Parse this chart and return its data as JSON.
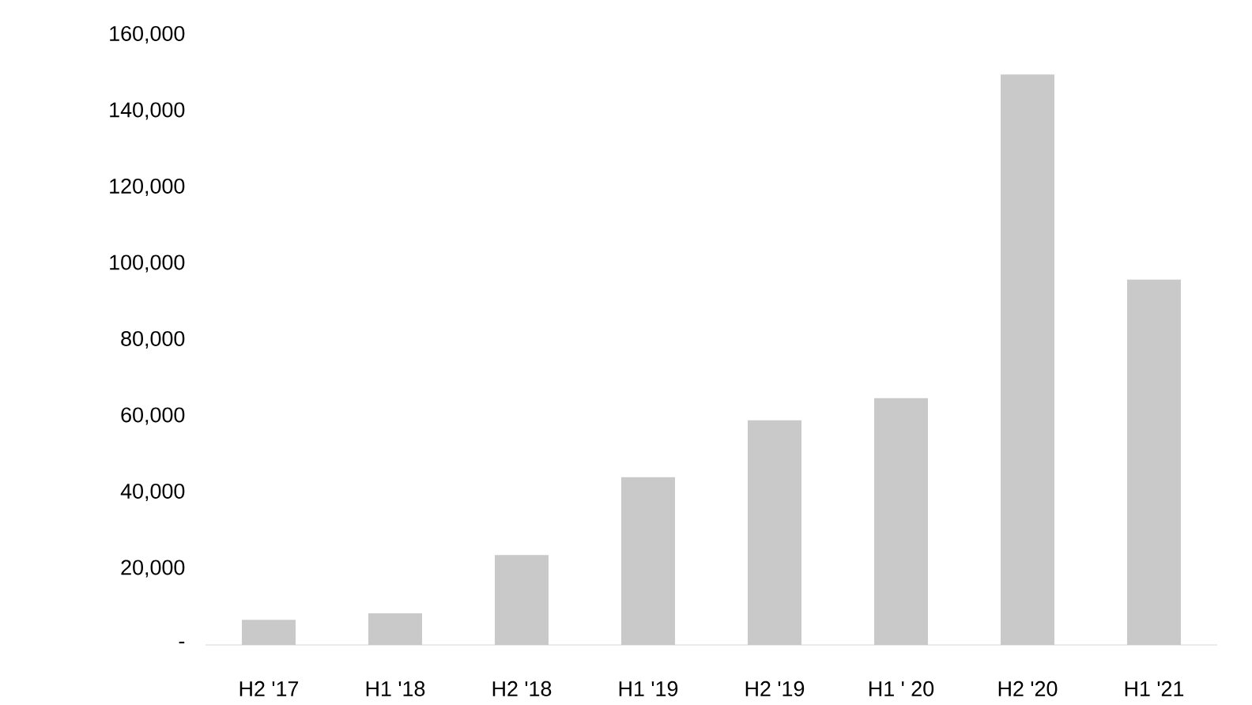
{
  "chart_data": {
    "type": "bar",
    "categories": [
      "H2 '17",
      "H1 '18",
      "H2 '18",
      "H1 '19",
      "H2 '19",
      "H1 ' 20",
      "H2 '20",
      "H1 '21"
    ],
    "values": [
      6600,
      8300,
      23600,
      44000,
      58900,
      64700,
      149600,
      95800
    ],
    "color": "#c9c9c9",
    "ylim": [
      0,
      160000
    ],
    "yticks": [
      {
        "value": 0,
        "label": "-"
      },
      {
        "value": 20000,
        "label": "20,000"
      },
      {
        "value": 40000,
        "label": "40,000"
      },
      {
        "value": 60000,
        "label": "60,000"
      },
      {
        "value": 80000,
        "label": "80,000"
      },
      {
        "value": 100000,
        "label": "100,000"
      },
      {
        "value": 120000,
        "label": "120,000"
      },
      {
        "value": 140000,
        "label": "140,000"
      },
      {
        "value": 160000,
        "label": "160,000"
      }
    ]
  }
}
